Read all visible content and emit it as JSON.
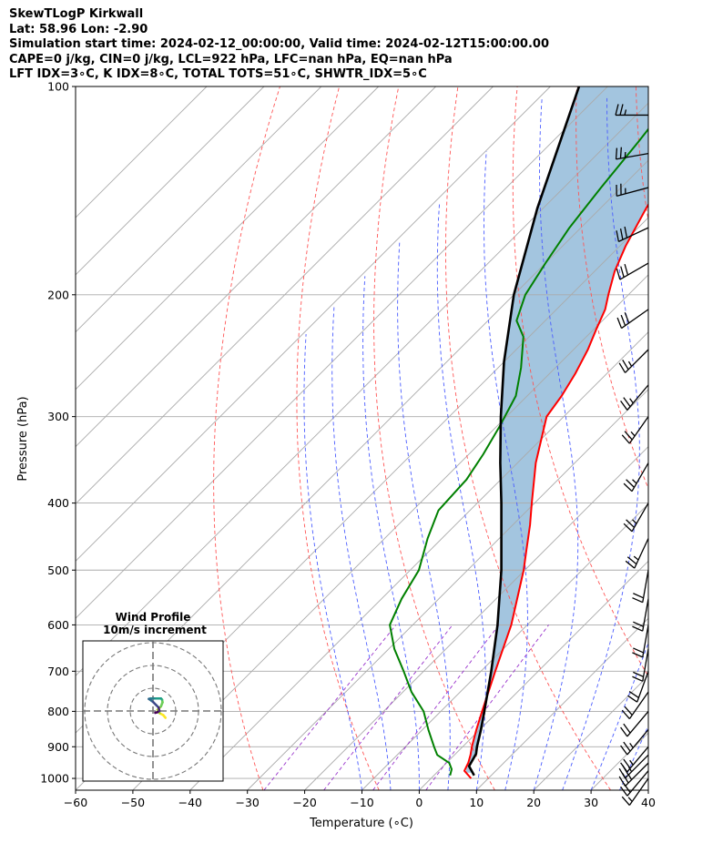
{
  "header": {
    "line1": "SkewTLogP Kirkwall",
    "line2": "Lat: 58.96   Lon: -2.90",
    "line3": "Simulation start time: 2024-02-12_00:00:00, Valid time: 2024-02-12T15:00:00.00",
    "line4": "CAPE=0 j/kg, CIN=0 j/kg, LCL=922 hPa, LFC=nan hPa, EQ=nan hPa",
    "line5": "LFT IDX=3∘C, K IDX=8∘C, TOTAL TOTS=51∘C, SHWTR_IDX=5∘C"
  },
  "colors": {
    "temperature": "#ff0000",
    "dewpoint": "#008000",
    "parcel": "#000000",
    "cape_fill": "#a3c5df",
    "dry_adiabats": "#ff5555",
    "moist_adiabats": "#4a5cff",
    "mixing_ratio": "#9933cc",
    "isotherms": "#aaaaaa",
    "isobars": "#aaaaaa"
  },
  "chart_data": {
    "type": "line",
    "title": "",
    "xlabel": "Temperature (∘C)",
    "ylabel": "Pressure (hPa)",
    "xlim": [
      -60,
      40
    ],
    "ylim": [
      1040,
      100
    ],
    "y_scale": "log",
    "skew": true,
    "x_ticks": [
      "−60",
      "−50",
      "−40",
      "−30",
      "−20",
      "−10",
      "0",
      "10",
      "20",
      "30",
      "40"
    ],
    "y_ticks": [
      "100",
      "200",
      "300",
      "400",
      "500",
      "600",
      "700",
      "800",
      "900",
      "1000"
    ],
    "grid": true,
    "series": [
      {
        "name": "",
        "points": [
          [
            1000,
            7
          ],
          [
            975,
            4.5
          ],
          [
            950,
            3.8
          ],
          [
            925,
            2.8
          ],
          [
            900,
            1.6
          ],
          [
            850,
            -0.6
          ],
          [
            800,
            -2.8
          ],
          [
            700,
            -7.5
          ],
          [
            600,
            -12.8
          ],
          [
            500,
            -20.2
          ],
          [
            470,
            -23
          ],
          [
            430,
            -27
          ],
          [
            400,
            -30.5
          ],
          [
            350,
            -36.8
          ],
          [
            300,
            -43
          ],
          [
            280,
            -44
          ],
          [
            260,
            -45.5
          ],
          [
            240,
            -47.5
          ],
          [
            225,
            -49.5
          ],
          [
            210,
            -51.5
          ],
          [
            200,
            -53.5
          ],
          [
            185,
            -56.5
          ],
          [
            170,
            -59
          ],
          [
            150,
            -62
          ],
          [
            130,
            -65
          ],
          [
            115,
            -68
          ],
          [
            100,
            -72
          ]
        ]
      },
      {
        "name": "",
        "points": [
          [
            990,
            2.8
          ],
          [
            970,
            2
          ],
          [
            950,
            0.5
          ],
          [
            925,
            -3
          ],
          [
            900,
            -5
          ],
          [
            850,
            -9
          ],
          [
            800,
            -13
          ],
          [
            750,
            -18.5
          ],
          [
            700,
            -23.5
          ],
          [
            650,
            -29
          ],
          [
            600,
            -34
          ],
          [
            550,
            -36.5
          ],
          [
            500,
            -38.5
          ],
          [
            450,
            -42.5
          ],
          [
            410,
            -45.5
          ],
          [
            370,
            -46
          ],
          [
            340,
            -47.5
          ],
          [
            310,
            -49.5
          ],
          [
            280,
            -52
          ],
          [
            255,
            -56
          ],
          [
            230,
            -61
          ],
          [
            218,
            -65
          ],
          [
            200,
            -68
          ],
          [
            180,
            -70
          ],
          [
            160,
            -72
          ],
          [
            140,
            -73.5
          ],
          [
            120,
            -75
          ],
          [
            100,
            -77
          ]
        ]
      },
      {
        "name": "",
        "points": [
          [
            990,
            7
          ],
          [
            960,
            4.5
          ],
          [
            922,
            3.6
          ],
          [
            900,
            2.5
          ],
          [
            850,
            0.2
          ],
          [
            800,
            -2.4
          ],
          [
            700,
            -8.2
          ],
          [
            600,
            -15.2
          ],
          [
            500,
            -24.1
          ],
          [
            400,
            -35.8
          ],
          [
            350,
            -43
          ],
          [
            300,
            -51
          ],
          [
            250,
            -60
          ],
          [
            200,
            -70
          ],
          [
            150,
            -81
          ],
          [
            100,
            -95
          ]
        ]
      }
    ],
    "wind_barbs": [
      {
        "p": 1000,
        "speed_kt": 15,
        "dir": 215
      },
      {
        "p": 975,
        "speed_kt": 20,
        "dir": 220
      },
      {
        "p": 950,
        "speed_kt": 25,
        "dir": 225
      },
      {
        "p": 925,
        "speed_kt": 25,
        "dir": 225
      },
      {
        "p": 900,
        "speed_kt": 25,
        "dir": 220
      },
      {
        "p": 850,
        "speed_kt": 25,
        "dir": 220
      },
      {
        "p": 800,
        "speed_kt": 20,
        "dir": 220
      },
      {
        "p": 750,
        "speed_kt": 20,
        "dir": 215
      },
      {
        "p": 700,
        "speed_kt": 20,
        "dir": 200
      },
      {
        "p": 650,
        "speed_kt": 20,
        "dir": 190
      },
      {
        "p": 600,
        "speed_kt": 20,
        "dir": 190
      },
      {
        "p": 550,
        "speed_kt": 20,
        "dir": 190
      },
      {
        "p": 500,
        "speed_kt": 20,
        "dir": 190
      },
      {
        "p": 450,
        "speed_kt": 25,
        "dir": 205
      },
      {
        "p": 400,
        "speed_kt": 25,
        "dir": 210
      },
      {
        "p": 350,
        "speed_kt": 25,
        "dir": 210
      },
      {
        "p": 300,
        "speed_kt": 25,
        "dir": 215
      },
      {
        "p": 270,
        "speed_kt": 25,
        "dir": 220
      },
      {
        "p": 240,
        "speed_kt": 25,
        "dir": 225
      },
      {
        "p": 210,
        "speed_kt": 30,
        "dir": 235
      },
      {
        "p": 180,
        "speed_kt": 30,
        "dir": 240
      },
      {
        "p": 160,
        "speed_kt": 30,
        "dir": 245
      },
      {
        "p": 140,
        "speed_kt": 25,
        "dir": 255
      },
      {
        "p": 125,
        "speed_kt": 25,
        "dir": 260
      },
      {
        "p": 110,
        "speed_kt": 25,
        "dir": 270
      }
    ],
    "hodograph": {
      "title": "Wind Profile",
      "subtitle": "10m/s increment",
      "points": [
        [
          5.5,
          -3
        ],
        [
          4.5,
          -1.8
        ],
        [
          3,
          -1
        ],
        [
          2,
          0.5
        ],
        [
          3.5,
          2
        ],
        [
          4.2,
          3.8
        ],
        [
          4,
          5
        ],
        [
          3.5,
          5.5
        ],
        [
          2,
          5.5
        ],
        [
          0.5,
          5.5
        ],
        [
          -1,
          5.5
        ],
        [
          -1.8,
          5.3
        ],
        [
          0,
          4
        ],
        [
          1.5,
          2.5
        ],
        [
          2.5,
          1.5
        ],
        [
          2.8,
          0
        ],
        [
          2,
          -0.5
        ],
        [
          1,
          -0.8
        ]
      ]
    }
  }
}
